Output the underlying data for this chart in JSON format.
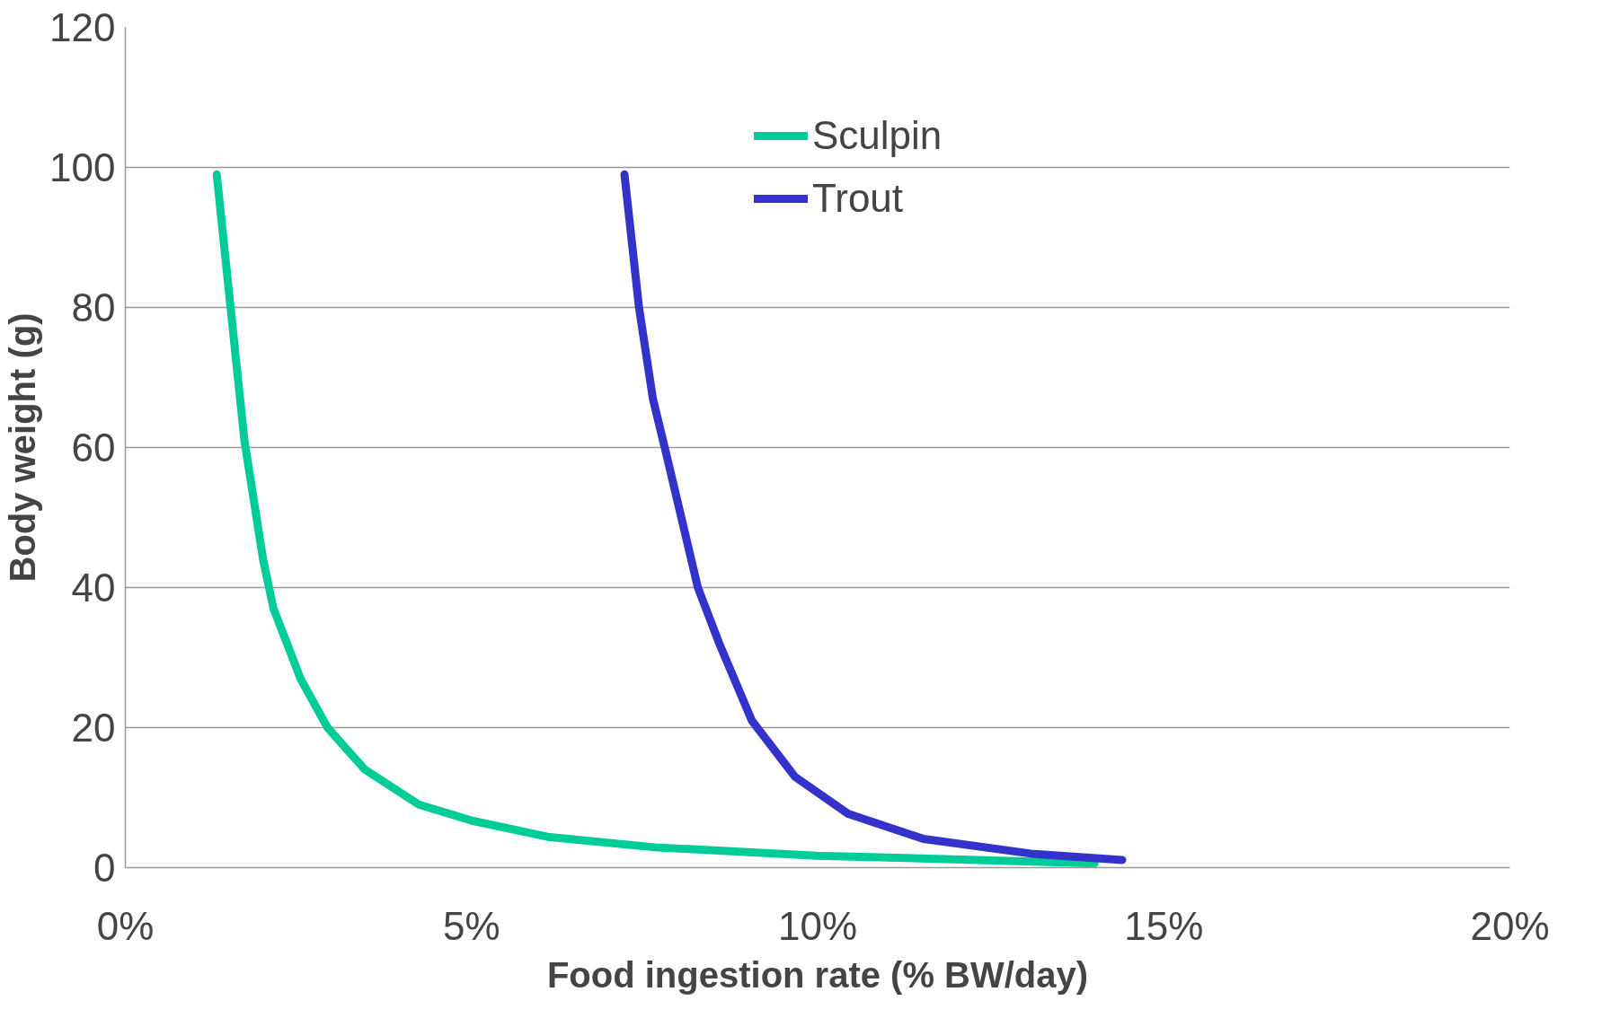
{
  "chart_data": {
    "type": "line",
    "xlabel": "Food ingestion rate (% BW/day)",
    "ylabel": "Body weight (g)",
    "xlim": [
      0,
      20
    ],
    "xticks": [
      {
        "value": 0,
        "label": "0%"
      },
      {
        "value": 5,
        "label": "5%"
      },
      {
        "value": 10,
        "label": "10%"
      },
      {
        "value": 15,
        "label": "15%"
      },
      {
        "value": 20,
        "label": "20%"
      }
    ],
    "ylim": [
      0,
      120
    ],
    "yticks": [
      0,
      20,
      40,
      60,
      80,
      100,
      120
    ],
    "grid": "y",
    "legend": "top right",
    "marker": "none",
    "line_style": "solid",
    "series": [
      {
        "name": "Sculpin",
        "color": "#00cc99",
        "x": [
          1.32,
          1.52,
          1.72,
          1.99,
          2.14,
          2.53,
          2.92,
          3.46,
          4.24,
          5.01,
          6.1,
          7.65,
          9.98,
          12.3,
          14.0
        ],
        "values": [
          99,
          80,
          61,
          44,
          37,
          27,
          20,
          14,
          9,
          6.7,
          4.4,
          2.9,
          1.7,
          1.1,
          0.6
        ]
      },
      {
        "name": "Trout",
        "color": "#3333cc",
        "x": [
          7.21,
          7.42,
          7.62,
          7.84,
          8.27,
          8.58,
          9.05,
          9.67,
          10.44,
          11.53,
          13.08,
          14.4
        ],
        "values": [
          99,
          80,
          67,
          58,
          40,
          32,
          21,
          13,
          7.7,
          4.1,
          2.0,
          1.1
        ]
      }
    ]
  }
}
